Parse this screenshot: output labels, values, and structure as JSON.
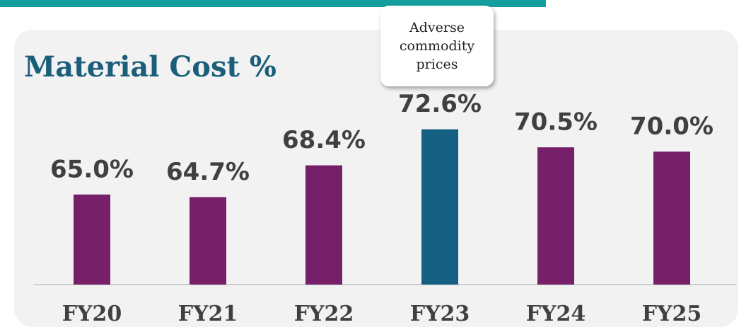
{
  "chart_data": {
    "type": "bar",
    "title": "Material Cost %",
    "annotation": "Adverse commodity prices",
    "categories": [
      "FY20",
      "FY21",
      "FY22",
      "FY23",
      "FY24",
      "FY25"
    ],
    "values": [
      65.0,
      64.7,
      68.4,
      72.6,
      70.5,
      70.0
    ],
    "value_labels": [
      "65.0%",
      "64.7%",
      "68.4%",
      "72.6%",
      "70.5%",
      "70.0%"
    ],
    "colors": [
      "#76206a",
      "#76206a",
      "#76206a",
      "#155f82",
      "#76206a",
      "#76206a"
    ],
    "ylim": [
      54.5,
      80
    ]
  }
}
